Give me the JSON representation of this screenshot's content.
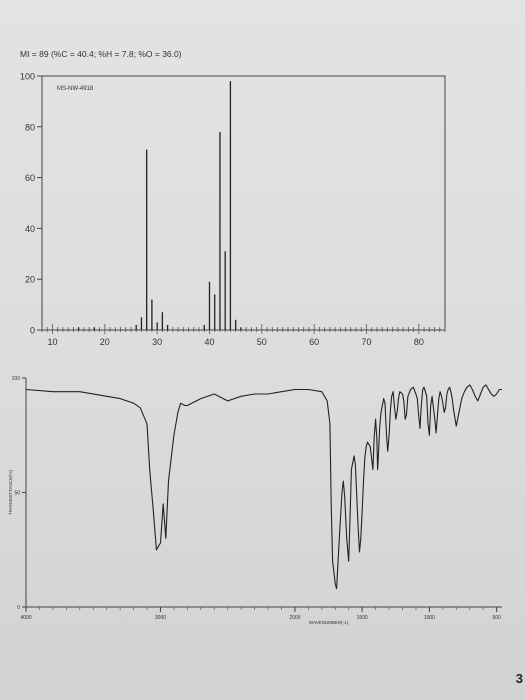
{
  "page": {
    "formula_line": "MI = 89 (%C = 40.4; %H = 7.8; %O = 36.0)",
    "page_number": "3"
  },
  "chart_data": [
    {
      "type": "bar",
      "name": "mass-spectrum",
      "annotation": "MS-NW-4918",
      "xlim": [
        8,
        85
      ],
      "ylim": [
        0,
        100
      ],
      "x_ticks": [
        "10",
        "20",
        "30",
        "40",
        "50",
        "60",
        "70",
        "80"
      ],
      "x_tick_values": [
        10,
        20,
        30,
        40,
        50,
        60,
        70,
        80
      ],
      "y_ticks": [
        "0",
        "20",
        "40",
        "60",
        "80",
        "100"
      ],
      "y_tick_values": [
        0,
        20,
        40,
        60,
        80,
        100
      ],
      "peaks": [
        {
          "mz": 15,
          "intensity": 1
        },
        {
          "mz": 18,
          "intensity": 1
        },
        {
          "mz": 26,
          "intensity": 2
        },
        {
          "mz": 27,
          "intensity": 5
        },
        {
          "mz": 28,
          "intensity": 71
        },
        {
          "mz": 29,
          "intensity": 12
        },
        {
          "mz": 30,
          "intensity": 3
        },
        {
          "mz": 31,
          "intensity": 7
        },
        {
          "mz": 32,
          "intensity": 2
        },
        {
          "mz": 39,
          "intensity": 2
        },
        {
          "mz": 40,
          "intensity": 19
        },
        {
          "mz": 41,
          "intensity": 14
        },
        {
          "mz": 42,
          "intensity": 78
        },
        {
          "mz": 43,
          "intensity": 31
        },
        {
          "mz": 44,
          "intensity": 98
        },
        {
          "mz": 45,
          "intensity": 4
        },
        {
          "mz": 46,
          "intensity": 1
        }
      ]
    },
    {
      "type": "line",
      "name": "ir-spectrum",
      "xlabel": "WAVENUMBER(-1)",
      "ylabel": "TRANSMITTANCE(%)",
      "x_reversed": true,
      "xlim": [
        4000,
        460
      ],
      "ylim": [
        0,
        100
      ],
      "x_ticks": [
        "4000",
        "3000",
        "2000",
        "1500",
        "1000",
        "500"
      ],
      "x_tick_values": [
        4000,
        3000,
        2000,
        1500,
        1000,
        500
      ],
      "y_ticks": [
        "100",
        "50",
        "0"
      ],
      "y_tick_values": [
        100,
        50,
        0
      ],
      "series": [
        {
          "x": [
            4000,
            3800,
            3600,
            3400,
            3300,
            3200,
            3150,
            3100,
            3080,
            3050,
            3030,
            3000,
            2980,
            2960,
            2940,
            2920,
            2900,
            2870,
            2850,
            2820,
            2800,
            2700,
            2600,
            2500,
            2400,
            2300,
            2200,
            2100,
            2000,
            1900,
            1800,
            1760,
            1740,
            1730,
            1720,
            1700,
            1690,
            1670,
            1650,
            1640,
            1630,
            1615,
            1600,
            1590,
            1580,
            1560,
            1550,
            1530,
            1520,
            1510,
            1500,
            1490,
            1480,
            1470,
            1460,
            1440,
            1430,
            1420,
            1410,
            1400,
            1390,
            1385,
            1380,
            1370,
            1360,
            1340,
            1330,
            1320,
            1310,
            1300,
            1290,
            1280,
            1270,
            1260,
            1250,
            1240,
            1230,
            1220,
            1200,
            1190,
            1180,
            1170,
            1160,
            1140,
            1120,
            1100,
            1090,
            1080,
            1070,
            1060,
            1050,
            1040,
            1030,
            1020,
            1010,
            1000,
            990,
            980,
            970,
            960,
            950,
            940,
            930,
            920,
            910,
            900,
            890,
            880,
            870,
            860,
            850,
            840,
            830,
            820,
            800,
            780,
            760,
            740,
            720,
            700,
            680,
            660,
            640,
            620,
            600,
            580,
            560,
            540,
            520,
            500,
            480,
            460
          ],
          "y": [
            95,
            94,
            94,
            92,
            91,
            89,
            87,
            80,
            60,
            40,
            25,
            28,
            45,
            30,
            55,
            65,
            75,
            85,
            89,
            88,
            88,
            91,
            93,
            90,
            92,
            93,
            93,
            94,
            95,
            95,
            94,
            90,
            80,
            45,
            20,
            10,
            8,
            30,
            50,
            55,
            48,
            30,
            20,
            40,
            60,
            66,
            62,
            35,
            24,
            30,
            42,
            55,
            65,
            70,
            72,
            70,
            65,
            60,
            75,
            82,
            73,
            60,
            65,
            78,
            85,
            91,
            89,
            76,
            68,
            75,
            86,
            92,
            94,
            88,
            82,
            85,
            91,
            94,
            93,
            90,
            82,
            84,
            92,
            95,
            96,
            93,
            91,
            84,
            78,
            88,
            95,
            96,
            94,
            92,
            80,
            75,
            88,
            92,
            87,
            82,
            76,
            84,
            91,
            94,
            92,
            89,
            85,
            87,
            93,
            95,
            96,
            94,
            91,
            86,
            79,
            85,
            91,
            94,
            96,
            97,
            95,
            92,
            90,
            93,
            96,
            97,
            95,
            93,
            92,
            93,
            95,
            95
          ]
        }
      ]
    }
  ]
}
